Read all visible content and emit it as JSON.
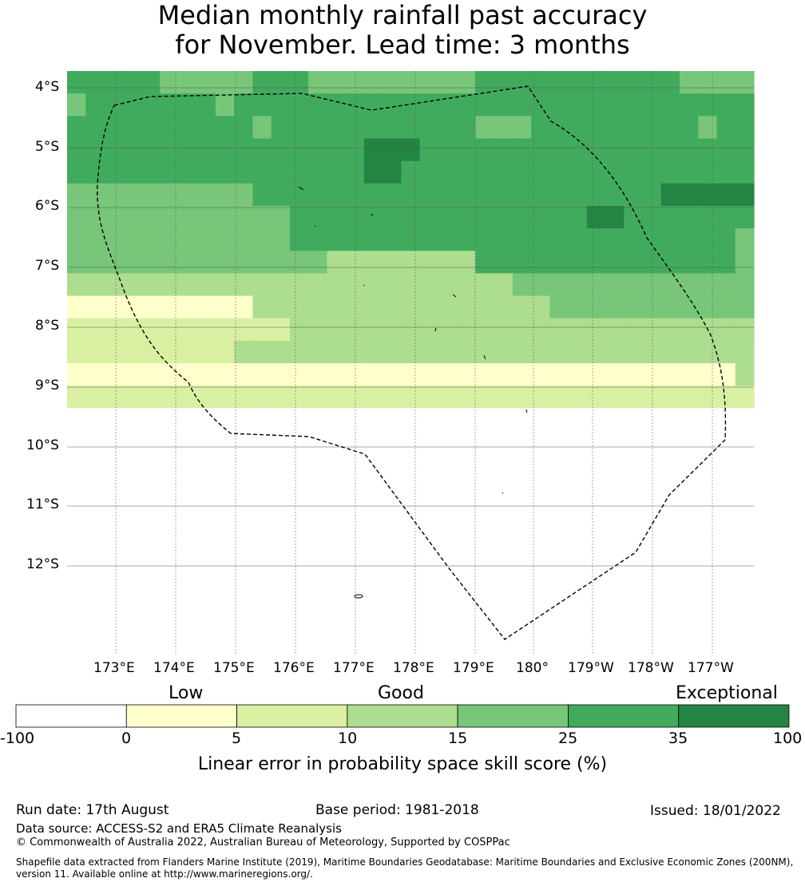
{
  "title_line1": "Median monthly rainfall past accuracy",
  "title_line2": "for November. Lead time: 3 months",
  "colors": {
    "-100_0": "#ffffff",
    "0_5": "#ffffcc",
    "5_10": "#d9f0a3",
    "10_15": "#addd8e",
    "15_25": "#78c679",
    "25_35": "#41ab5d",
    "35_100": "#238443"
  },
  "lat_labels": [
    "4°S",
    "5°S",
    "6°S",
    "7°S",
    "8°S",
    "9°S",
    "10°S",
    "11°S",
    "12°S"
  ],
  "lon_labels": [
    "173°E",
    "174°E",
    "175°E",
    "176°E",
    "177°E",
    "178°E",
    "179°E",
    "180°",
    "179°W",
    "178°W",
    "177°W"
  ],
  "colorbar": {
    "categories": [
      "Low",
      "Good",
      "Exceptional"
    ],
    "ticks": [
      "-100",
      "0",
      "5",
      "10",
      "15",
      "25",
      "35",
      "100"
    ],
    "title": "Linear error in probability space skill score (%)"
  },
  "grid": [
    "5555544444555444444444555555555554444",
    "4555555545555555555555555555555555555",
    "5555555555455555555555444555555555455",
    "5555555555555555666555555555555555555",
    "5555555555555555665555555555555555555",
    "4444444444555555555555555555555566666",
    "4444444444445555555555555555665555555",
    "4444444444445555555555555555555555554",
    "4444444444444433333333555555555555554",
    "3333333333333333333333334444444444444",
    "1111111111333333333333333344444444444",
    "2222222222223333333333333333333333333",
    "2222222223333333333333333333333333333",
    "1111111111111111111111111111111111113",
    "2222222222222222222222222222222222222",
    "0000000000000000000000000000000000000",
    "0000000000000000000000000000000000000",
    "0000000000000000000000000000000000000",
    "0000000000000000000000000000000000000",
    "0000000000000000000000000000000000000",
    "0000000000000000000000000000000000000",
    "0000000000000000000000000000000000000",
    "0000000000000000000000000000000000000",
    "0000000000000000000000000000000000000",
    "0000000000000000000000000000000000000",
    "0000000000000000000000000000000000000"
  ],
  "footer": {
    "run_date": "Run date: 17th August",
    "base_period": "Base period: 1981-2018",
    "issued": "Issued: 18/01/2022",
    "data_source": "Data source: ACCESS-S2 and ERA5 Climate Reanalysis",
    "copyright": "© Commonwealth of Australia 2022, Australian Bureau of Meteorology, Supported by COSPPac",
    "shapefile_line1": "Shapefile data extracted from Flanders Marine Institute (2019), Maritime Boundaries Geodatabase: Maritime Boundaries and Exclusive Economic Zones (200NM),",
    "shapefile_line2": "version 11. Available online at http://www.marineregions.org/."
  }
}
